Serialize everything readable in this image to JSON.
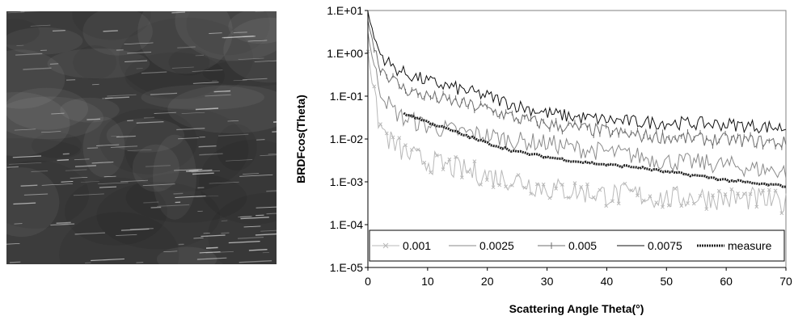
{
  "texture_image": {
    "base_color": "#3c3c3c",
    "streak_color": "#d8d8d8"
  },
  "chart_data": {
    "type": "line",
    "title": "",
    "xlabel": "Scattering Angle Theta(°)",
    "ylabel": "BRDFcos(Theta)",
    "xlim": [
      0,
      70
    ],
    "ylim": [
      1e-05,
      10
    ],
    "y_scale": "log",
    "x_ticks": [
      "0",
      "10",
      "20",
      "30",
      "40",
      "50",
      "60",
      "70"
    ],
    "y_ticks": [
      "1.E-05",
      "1.E-04",
      "1.E-03",
      "1.E-02",
      "1.E-01",
      "1.E+00",
      "1.E+01"
    ],
    "grid": false,
    "legend_position": "bottom",
    "series": [
      {
        "name": "0.001",
        "color": "#b8b8b8",
        "marker": "x",
        "x": [
          0,
          1,
          2,
          4,
          6,
          8,
          10,
          15,
          20,
          25,
          30,
          35,
          40,
          45,
          50,
          55,
          60,
          65,
          70
        ],
        "y": [
          1.2,
          0.1,
          0.02,
          0.008,
          0.005,
          0.0035,
          0.003,
          0.002,
          0.0014,
          0.0011,
          0.0007,
          0.0006,
          0.0005,
          0.0005,
          0.0004,
          0.00045,
          0.0004,
          0.0004,
          0.0003
        ]
      },
      {
        "name": "0.0025",
        "color": "#8a8a8a",
        "marker": "none",
        "x": [
          0,
          1,
          2,
          4,
          6,
          8,
          10,
          15,
          20,
          25,
          30,
          35,
          40,
          45,
          50,
          55,
          60,
          65,
          70
        ],
        "y": [
          3.0,
          0.5,
          0.15,
          0.05,
          0.03,
          0.025,
          0.02,
          0.015,
          0.012,
          0.009,
          0.008,
          0.006,
          0.005,
          0.004,
          0.003,
          0.0028,
          0.0025,
          0.002,
          0.0018
        ]
      },
      {
        "name": "0.005",
        "color": "#6e6e6e",
        "marker": "tick",
        "x": [
          0,
          1,
          2,
          4,
          6,
          8,
          10,
          15,
          20,
          25,
          30,
          35,
          40,
          45,
          50,
          55,
          60,
          65,
          70
        ],
        "y": [
          6.0,
          1.5,
          0.5,
          0.25,
          0.15,
          0.12,
          0.1,
          0.07,
          0.05,
          0.03,
          0.022,
          0.018,
          0.015,
          0.012,
          0.011,
          0.01,
          0.0095,
          0.009,
          0.008
        ]
      },
      {
        "name": "0.0075",
        "color": "#111111",
        "marker": "none",
        "x": [
          0,
          1,
          2,
          4,
          6,
          8,
          10,
          15,
          20,
          25,
          30,
          35,
          40,
          45,
          50,
          55,
          60,
          65,
          70
        ],
        "y": [
          9.0,
          2.5,
          1.0,
          0.5,
          0.35,
          0.28,
          0.22,
          0.15,
          0.1,
          0.06,
          0.04,
          0.032,
          0.028,
          0.025,
          0.024,
          0.023,
          0.022,
          0.02,
          0.018
        ]
      },
      {
        "name": "measure",
        "color": "#222222",
        "marker": "thick",
        "x": [
          6,
          8,
          10,
          15,
          20,
          25,
          30,
          35,
          40,
          45,
          50,
          55,
          60,
          65,
          70
        ],
        "y": [
          0.04,
          0.032,
          0.025,
          0.014,
          0.008,
          0.005,
          0.0038,
          0.003,
          0.0025,
          0.0022,
          0.0017,
          0.0014,
          0.0011,
          0.0009,
          0.0008
        ]
      }
    ]
  }
}
